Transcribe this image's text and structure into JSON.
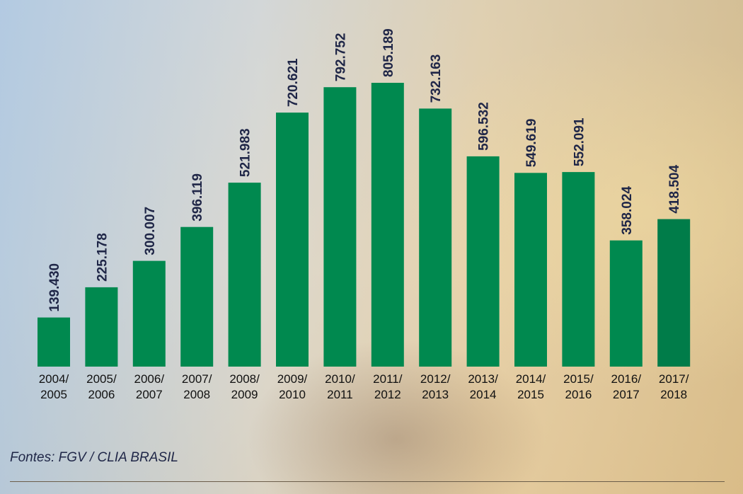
{
  "chart_data": {
    "type": "bar",
    "categories": [
      [
        "2004/",
        "2005"
      ],
      [
        "2005/",
        "2006"
      ],
      [
        "2006/",
        "2007"
      ],
      [
        "2007/",
        "2008"
      ],
      [
        "2008/",
        "2009"
      ],
      [
        "2009/",
        "2010"
      ],
      [
        "2010/",
        "2011"
      ],
      [
        "2011/",
        "2012"
      ],
      [
        "2012/",
        "2013"
      ],
      [
        "2013/",
        "2014"
      ],
      [
        "2014/",
        "2015"
      ],
      [
        "2015/",
        "2016"
      ],
      [
        "2016/",
        "2017"
      ],
      [
        "2017/",
        "2018"
      ]
    ],
    "values": [
      139430,
      225178,
      300007,
      396119,
      521983,
      720621,
      792752,
      805189,
      732163,
      596532,
      549619,
      552091,
      358024,
      418504
    ],
    "value_labels": [
      "139.430",
      "225.178",
      "300.007",
      "396.119",
      "521.983",
      "720.621",
      "792.752",
      "805.189",
      "732.163",
      "596.532",
      "549.619",
      "552.091",
      "358.024",
      "418.504"
    ],
    "title": "",
    "xlabel": "",
    "ylabel": "",
    "ylim": [
      0,
      1000000
    ],
    "grid": false,
    "colors": {
      "bar": "#00894f",
      "bar_highlight": "#007c49",
      "value_text": "#1f2647"
    }
  },
  "source": "Fontes: FGV / CLIA BRASIL"
}
